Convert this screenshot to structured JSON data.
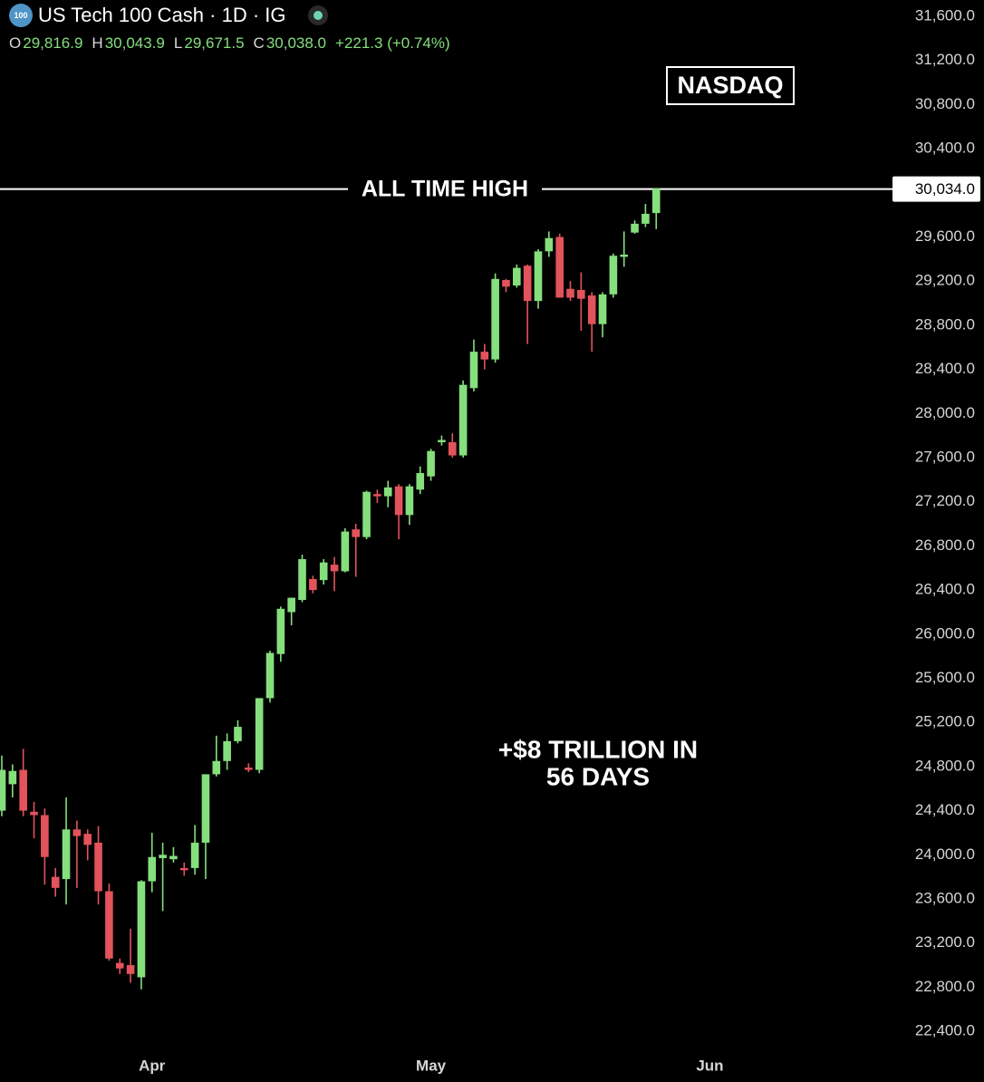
{
  "chart_data": {
    "type": "candlestick",
    "symbol": "100",
    "title": "US Tech 100 Cash · 1D · IG",
    "ohlc_labels": [
      {
        "name": "O",
        "label": "29,816.9"
      },
      {
        "name": "H",
        "label": "30,043.9"
      },
      {
        "name": "L",
        "label": "29,671.5"
      },
      {
        "name": "C",
        "label": "30,038.0"
      }
    ],
    "change": "+221.3 (+0.74%)",
    "categories": [
      null,
      null,
      null,
      null,
      null,
      null,
      null,
      null,
      null,
      null,
      null,
      null,
      null,
      null,
      "Apr",
      null,
      null,
      null,
      null,
      null,
      null,
      null,
      null,
      null,
      null,
      null,
      null,
      null,
      null,
      null,
      null,
      null,
      null,
      null,
      null,
      null,
      null,
      null,
      null,
      null,
      "May",
      null,
      null,
      null,
      null,
      null,
      null,
      null,
      null,
      null,
      null,
      null,
      null,
      null,
      null,
      null,
      null,
      null,
      null,
      null,
      null,
      null,
      null,
      null,
      null,
      null,
      "Jun"
    ],
    "open": [
      24400,
      24640,
      24770,
      24390,
      24360,
      23800,
      23780,
      24230,
      24190,
      24110,
      23670,
      23020,
      23000,
      22890,
      23760,
      23970,
      23960,
      23880,
      23880,
      24110,
      24730,
      24850,
      25030,
      24790,
      24770,
      25420,
      25820,
      26200,
      26310,
      26500,
      26490,
      26630,
      26570,
      26950,
      26880,
      27270,
      27250,
      27340,
      27080,
      27310,
      27430,
      27740,
      27740,
      27620,
      28230,
      28560,
      28490,
      29210,
      29160,
      29340,
      29020,
      29470,
      29600,
      29130,
      29120,
      29070,
      28810,
      29080,
      29420,
      29640,
      29720,
      29816.9,
      null,
      null,
      null,
      null,
      null
    ],
    "high": [
      24900,
      24820,
      24960,
      24480,
      24420,
      23880,
      24520,
      24310,
      24230,
      24260,
      23740,
      23060,
      23330,
      23770,
      24200,
      24110,
      24070,
      23930,
      24270,
      24730,
      25080,
      25100,
      25220,
      24830,
      25420,
      25850,
      26250,
      26330,
      26720,
      26530,
      26680,
      26700,
      26960,
      27000,
      27300,
      27310,
      27390,
      27360,
      27360,
      27520,
      27680,
      27800,
      27820,
      28300,
      28670,
      28630,
      29270,
      29220,
      29350,
      29350,
      29490,
      29650,
      29630,
      29200,
      29280,
      29100,
      29100,
      29450,
      29650,
      29750,
      29900,
      30043.9,
      null,
      null,
      null,
      null,
      null
    ],
    "low": [
      24350,
      24520,
      24350,
      24150,
      23730,
      23620,
      23550,
      23700,
      23950,
      23550,
      23040,
      22920,
      22840,
      22780,
      23660,
      23490,
      23930,
      23810,
      23820,
      23780,
      24710,
      24770,
      25010,
      24750,
      24740,
      25380,
      25750,
      26080,
      26290,
      26370,
      26450,
      26390,
      26560,
      26520,
      26860,
      27190,
      27150,
      26860,
      26990,
      27270,
      27390,
      27710,
      27600,
      27600,
      28200,
      28400,
      28460,
      29100,
      29140,
      28630,
      28950,
      29420,
      29050,
      29020,
      28750,
      28560,
      28690,
      29050,
      29330,
      29630,
      29690,
      29671.5,
      null,
      null,
      null,
      null,
      null
    ],
    "close": [
      24770,
      24760,
      24400,
      24360,
      23980,
      23700,
      24230,
      24170,
      24090,
      23670,
      23060,
      22970,
      22920,
      23760,
      23980,
      24000,
      23990,
      23860,
      24110,
      24730,
      24850,
      25030,
      25160,
      24770,
      25420,
      25830,
      26230,
      26330,
      26680,
      26400,
      26650,
      26570,
      26930,
      26880,
      27290,
      27250,
      27330,
      27080,
      27340,
      27460,
      27660,
      27760,
      27620,
      28260,
      28560,
      28490,
      29220,
      29150,
      29320,
      29020,
      29470,
      29590,
      29050,
      29050,
      29040,
      28810,
      29080,
      29430,
      29440,
      29720,
      29810,
      30038.0,
      null,
      null,
      null,
      null,
      null
    ],
    "up_color": "#85df7d",
    "down_color": "#e2535c",
    "ylim": [
      22220,
      31748
    ],
    "yticks": [
      {
        "value": 22400,
        "label": "22,400.0"
      },
      {
        "value": 22800,
        "label": "22,800.0"
      },
      {
        "value": 23200,
        "label": "23,200.0"
      },
      {
        "value": 23600,
        "label": "23,600.0"
      },
      {
        "value": 24000,
        "label": "24,000.0"
      },
      {
        "value": 24400,
        "label": "24,400.0"
      },
      {
        "value": 24800,
        "label": "24,800.0"
      },
      {
        "value": 25200,
        "label": "25,200.0"
      },
      {
        "value": 25600,
        "label": "25,600.0"
      },
      {
        "value": 26000,
        "label": "26,000.0"
      },
      {
        "value": 26400,
        "label": "26,400.0"
      },
      {
        "value": 26800,
        "label": "26,800.0"
      },
      {
        "value": 27200,
        "label": "27,200.0"
      },
      {
        "value": 27600,
        "label": "27,600.0"
      },
      {
        "value": 28000,
        "label": "28,000.0"
      },
      {
        "value": 28400,
        "label": "28,400.0"
      },
      {
        "value": 28800,
        "label": "28,800.0"
      },
      {
        "value": 29200,
        "label": "29,200.0"
      },
      {
        "value": 29600,
        "label": "29,600.0"
      },
      {
        "value": 30000,
        "label": "30,000.0"
      },
      {
        "value": 30400,
        "label": "30,400.0"
      },
      {
        "value": 30800,
        "label": "30,800.0"
      },
      {
        "value": 31200,
        "label": "31,200.0"
      },
      {
        "value": 31600,
        "label": "31,600.0"
      }
    ],
    "reference_line": {
      "value": 30034,
      "label": "30,034.0",
      "text": "ALL TIME HIGH"
    },
    "badge": "NASDAQ",
    "annotation": [
      "+$8 TRILLION IN",
      "56 DAYS"
    ]
  }
}
